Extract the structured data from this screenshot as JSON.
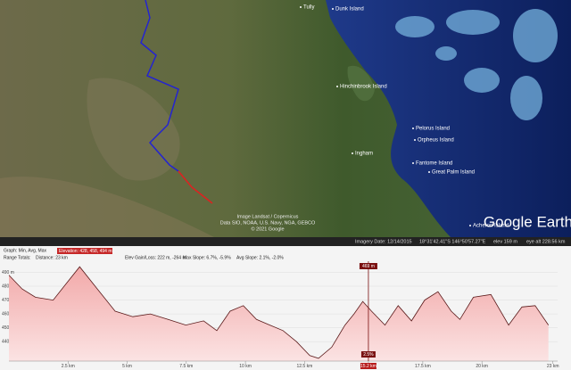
{
  "map": {
    "labels": [
      "Tully",
      "Dunk Island",
      "Hinchinbrook Island",
      "Pelorus Island",
      "Orpheus Island",
      "Ingham",
      "Fantome Island",
      "Great Palm Island",
      "Acheron Island"
    ],
    "attribution": [
      "Image Landsat / Copernicus",
      "Data SIO, NOAA, U.S. Navy, NGA, GEBCO",
      "© 2021 Google"
    ],
    "logo": "Google Earth"
  },
  "status_bar": {
    "imagery_date": "Imagery Date: 12/14/2015",
    "coordinates": "18°31'42.41\"S 146°50'57.27\"E",
    "elevation": "elev  159 m",
    "eye_alt": "eye alt 228.56 km"
  },
  "profile": {
    "graph_label": "Graph: Min, Avg, Max",
    "elevation_label": "Elevation: 428, 458, 494 m",
    "range_totals": "Range Totals:",
    "distance": "Distance: 23 km",
    "elev_gain": "Elev Gain/Loss: 222 m, -264 m",
    "max_slope": "Max Slope: 6.7%, -5.9%",
    "avg_slope": "Avg Slope: 2.1%, -2.0%",
    "x": [
      0,
      0.56,
      1.12,
      1.87,
      2.43,
      2.99,
      3.74,
      4.49,
      5.24,
      5.98,
      6.73,
      7.48,
      8.23,
      8.79,
      9.35,
      9.91,
      10.47,
      11.03,
      11.59,
      12.16,
      12.72,
      13.09,
      13.65,
      14.21,
      14.59,
      14.96,
      15.33,
      15.9,
      16.46,
      17.02,
      17.58,
      18.14,
      18.7,
      19.07,
      19.64,
      20.38,
      21.13,
      21.69,
      22.25,
      22.81
    ],
    "elevation": [
      488,
      478,
      472,
      470,
      482,
      494,
      478,
      462,
      458,
      460,
      456,
      452,
      455,
      448,
      462,
      466,
      456,
      452,
      448,
      440,
      430,
      428,
      436,
      452,
      460,
      469,
      462,
      452,
      466,
      455,
      470,
      476,
      462,
      456,
      472,
      474,
      452,
      465,
      466,
      452
    ],
    "xlim": [
      0,
      23.2
    ],
    "ylim": [
      426,
      498
    ],
    "xticks": [
      {
        "value": 2.5,
        "label": "2.5 km"
      },
      {
        "value": 5,
        "label": "5 km"
      },
      {
        "value": 7.5,
        "label": "7.5 km"
      },
      {
        "value": 10,
        "label": "10 km"
      },
      {
        "value": 12.5,
        "label": "12.5 km"
      },
      {
        "value": 15.2,
        "label": "15.2 km"
      },
      {
        "value": 17.5,
        "label": "17.5 km"
      },
      {
        "value": 20,
        "label": "20 km"
      },
      {
        "value": 23,
        "label": "23 km"
      }
    ],
    "yticks": [
      {
        "value": 490,
        "label": "490 m"
      },
      {
        "value": 480,
        "label": "480 m"
      },
      {
        "value": 470,
        "label": "470 m"
      },
      {
        "value": 460,
        "label": "460 m"
      },
      {
        "value": 450,
        "label": "450 m"
      },
      {
        "value": 440,
        "label": "440 m"
      }
    ],
    "cursor": {
      "x": 15.2,
      "elevation_label": "469 m",
      "slope_label": "2.5%"
    }
  }
}
